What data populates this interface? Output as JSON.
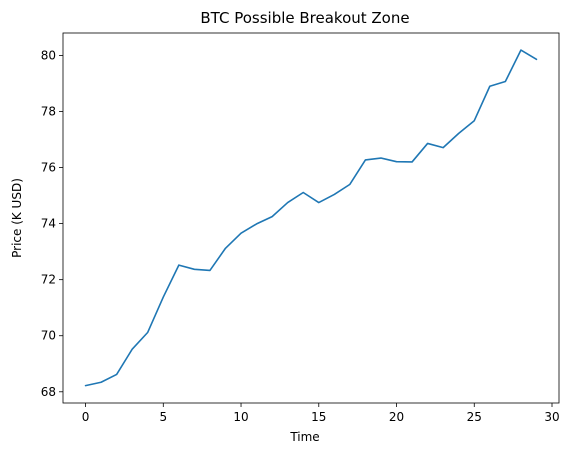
{
  "chart_data": {
    "type": "line",
    "title": "BTC Possible Breakout Zone",
    "xlabel": "Time",
    "ylabel": "Price (K USD)",
    "xlim": [
      -1.45,
      30.45
    ],
    "ylim": [
      67.6,
      80.8
    ],
    "x_ticks": [
      0,
      5,
      10,
      15,
      20,
      25,
      30
    ],
    "y_ticks": [
      68,
      70,
      72,
      74,
      76,
      78,
      80
    ],
    "grid": false,
    "series_color": "#1f77b4",
    "series": [
      {
        "x": [
          0,
          1,
          2,
          3,
          4,
          5,
          6,
          7,
          8,
          9,
          10,
          11,
          12,
          13,
          14,
          15,
          16,
          17,
          18,
          19,
          20,
          21,
          22,
          23,
          24,
          25,
          26,
          27,
          28,
          29
        ],
        "values": [
          68.22,
          68.34,
          68.62,
          69.52,
          70.12,
          71.38,
          72.52,
          72.37,
          72.33,
          73.12,
          73.66,
          73.99,
          74.25,
          74.75,
          75.11,
          74.75,
          75.04,
          75.4,
          76.27,
          76.34,
          76.21,
          76.2,
          76.86,
          76.71,
          77.22,
          77.67,
          78.9,
          79.07,
          80.19,
          79.86
        ]
      }
    ]
  }
}
